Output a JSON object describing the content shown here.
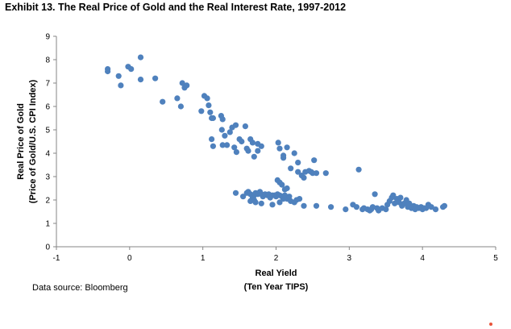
{
  "title": "Exhibit 13. The Real Price of Gold and the Real Interest Rate, 1997-2012",
  "source": "Data source: Bloomberg",
  "colors": {
    "marker": "#4F81BD",
    "axis": "#868686",
    "accent_dot": "#E8543A"
  },
  "chart_data": {
    "type": "scatter",
    "xlabel": [
      "Real Yield",
      "(Ten Year TIPS)"
    ],
    "ylabel": [
      "Real Price of Gold",
      "(Price of Gold/U.S. CPI Index)"
    ],
    "xlim": [
      -1,
      5
    ],
    "ylim": [
      0,
      9
    ],
    "xticks": [
      "-1",
      "0",
      "1",
      "2",
      "3",
      "4",
      "5"
    ],
    "yticks": [
      "0",
      "1",
      "2",
      "3",
      "4",
      "5",
      "6",
      "7",
      "8",
      "9"
    ],
    "grid": false,
    "legend": "none",
    "points": [
      [
        -0.3,
        7.6
      ],
      [
        -0.3,
        7.5
      ],
      [
        -0.15,
        7.3
      ],
      [
        -0.12,
        6.9
      ],
      [
        -0.02,
        7.7
      ],
      [
        0.02,
        7.6
      ],
      [
        0.15,
        8.1
      ],
      [
        0.15,
        7.15
      ],
      [
        0.35,
        7.2
      ],
      [
        0.45,
        6.2
      ],
      [
        0.65,
        6.35
      ],
      [
        0.7,
        6.0
      ],
      [
        0.72,
        7.0
      ],
      [
        0.75,
        6.8
      ],
      [
        0.78,
        6.9
      ],
      [
        0.98,
        5.8
      ],
      [
        1.02,
        6.45
      ],
      [
        1.06,
        6.35
      ],
      [
        1.08,
        6.05
      ],
      [
        1.1,
        5.75
      ],
      [
        1.12,
        5.5
      ],
      [
        1.14,
        5.5
      ],
      [
        1.12,
        4.6
      ],
      [
        1.14,
        4.3
      ],
      [
        1.25,
        5.6
      ],
      [
        1.27,
        5.45
      ],
      [
        1.26,
        5.0
      ],
      [
        1.3,
        4.75
      ],
      [
        1.27,
        4.35
      ],
      [
        1.33,
        4.35
      ],
      [
        1.37,
        4.9
      ],
      [
        1.4,
        5.1
      ],
      [
        1.45,
        5.2
      ],
      [
        1.43,
        4.25
      ],
      [
        1.46,
        4.05
      ],
      [
        1.5,
        4.6
      ],
      [
        1.53,
        4.5
      ],
      [
        1.58,
        5.15
      ],
      [
        1.6,
        4.2
      ],
      [
        1.62,
        4.1
      ],
      [
        1.65,
        4.6
      ],
      [
        1.68,
        4.45
      ],
      [
        1.7,
        3.85
      ],
      [
        1.75,
        4.1
      ],
      [
        1.75,
        4.4
      ],
      [
        1.8,
        4.3
      ],
      [
        2.03,
        4.45
      ],
      [
        2.05,
        4.2
      ],
      [
        2.1,
        3.8
      ],
      [
        2.1,
        3.9
      ],
      [
        2.15,
        4.25
      ],
      [
        2.2,
        3.35
      ],
      [
        2.25,
        4.0
      ],
      [
        2.3,
        3.2
      ],
      [
        2.3,
        3.6
      ],
      [
        2.35,
        3.05
      ],
      [
        2.38,
        2.95
      ],
      [
        2.4,
        3.2
      ],
      [
        2.45,
        3.25
      ],
      [
        2.48,
        3.2
      ],
      [
        2.5,
        3.15
      ],
      [
        2.55,
        3.15
      ],
      [
        2.52,
        3.7
      ],
      [
        2.68,
        3.15
      ],
      [
        2.02,
        2.85
      ],
      [
        2.05,
        2.75
      ],
      [
        2.08,
        2.65
      ],
      [
        2.12,
        2.45
      ],
      [
        2.15,
        2.5
      ],
      [
        3.13,
        3.3
      ],
      [
        1.45,
        2.3
      ],
      [
        1.55,
        2.15
      ],
      [
        1.6,
        2.3
      ],
      [
        1.62,
        2.35
      ],
      [
        1.65,
        2.25
      ],
      [
        1.68,
        2.1
      ],
      [
        1.7,
        2.2
      ],
      [
        1.72,
        2.3
      ],
      [
        1.75,
        2.25
      ],
      [
        1.78,
        2.35
      ],
      [
        1.8,
        2.25
      ],
      [
        1.82,
        2.15
      ],
      [
        1.85,
        2.25
      ],
      [
        1.88,
        2.2
      ],
      [
        1.9,
        2.25
      ],
      [
        1.92,
        2.1
      ],
      [
        1.95,
        2.2
      ],
      [
        1.98,
        2.2
      ],
      [
        2.0,
        2.15
      ],
      [
        2.02,
        2.25
      ],
      [
        2.05,
        2.2
      ],
      [
        2.08,
        2.15
      ],
      [
        2.1,
        2.05
      ],
      [
        2.12,
        2.2
      ],
      [
        2.15,
        2.05
      ],
      [
        2.18,
        2.15
      ],
      [
        2.2,
        1.95
      ],
      [
        2.25,
        1.9
      ],
      [
        2.28,
        2.0
      ],
      [
        2.32,
        2.05
      ],
      [
        2.38,
        1.75
      ],
      [
        1.65,
        1.95
      ],
      [
        1.7,
        2.0
      ],
      [
        1.72,
        1.9
      ],
      [
        1.8,
        1.85
      ],
      [
        1.95,
        1.8
      ],
      [
        2.05,
        1.9
      ],
      [
        2.55,
        1.75
      ],
      [
        2.75,
        1.7
      ],
      [
        2.95,
        1.6
      ],
      [
        3.05,
        1.8
      ],
      [
        3.1,
        1.7
      ],
      [
        3.18,
        1.6
      ],
      [
        3.2,
        1.65
      ],
      [
        3.25,
        1.6
      ],
      [
        3.28,
        1.55
      ],
      [
        3.3,
        1.6
      ],
      [
        3.32,
        1.7
      ],
      [
        3.35,
        2.25
      ],
      [
        3.38,
        1.65
      ],
      [
        3.4,
        1.55
      ],
      [
        3.45,
        1.65
      ],
      [
        3.5,
        1.6
      ],
      [
        3.52,
        1.8
      ],
      [
        3.55,
        1.95
      ],
      [
        3.58,
        2.1
      ],
      [
        3.6,
        2.2
      ],
      [
        3.62,
        1.85
      ],
      [
        3.65,
        2.05
      ],
      [
        3.68,
        1.9
      ],
      [
        3.7,
        2.1
      ],
      [
        3.72,
        1.75
      ],
      [
        3.75,
        1.85
      ],
      [
        3.78,
        2.0
      ],
      [
        3.8,
        1.7
      ],
      [
        3.82,
        1.85
      ],
      [
        3.85,
        1.65
      ],
      [
        3.88,
        1.75
      ],
      [
        3.9,
        1.6
      ],
      [
        3.92,
        1.7
      ],
      [
        3.95,
        1.65
      ],
      [
        3.98,
        1.7
      ],
      [
        4.0,
        1.6
      ],
      [
        4.02,
        1.65
      ],
      [
        4.05,
        1.65
      ],
      [
        4.08,
        1.8
      ],
      [
        4.12,
        1.7
      ],
      [
        4.18,
        1.6
      ],
      [
        4.28,
        1.7
      ],
      [
        4.3,
        1.75
      ]
    ]
  }
}
